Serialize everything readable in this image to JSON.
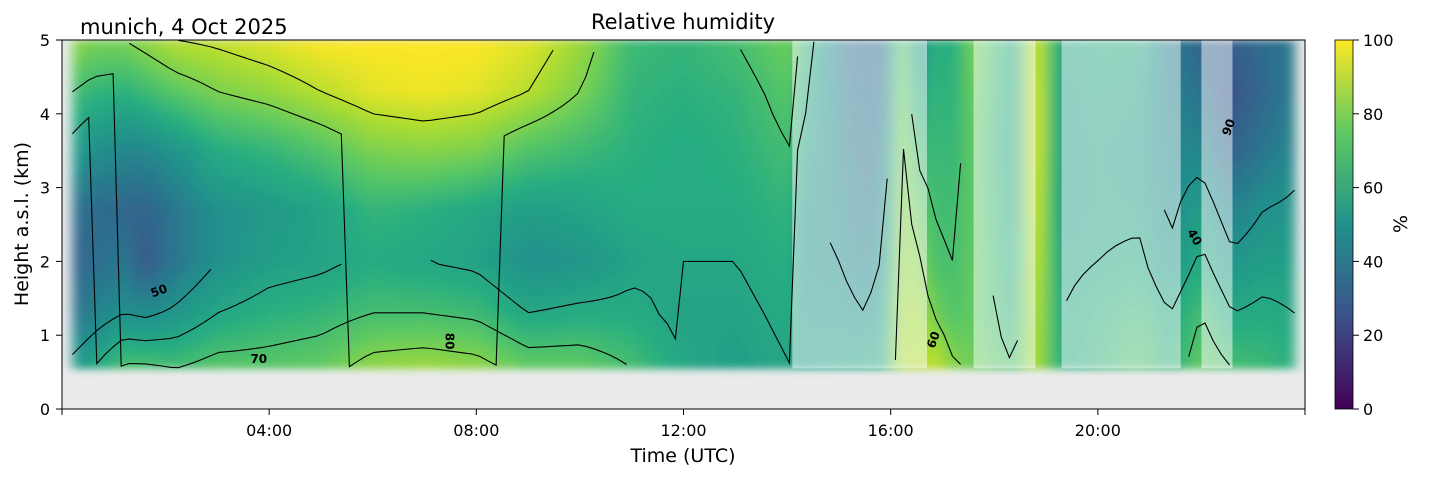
{
  "chart_data": {
    "type": "heatmap",
    "title": "Relative humidity",
    "subtitle": "munich, 4 Oct 2025",
    "xlabel": "Time (UTC)",
    "ylabel": "Height a.s.l. (km)",
    "x_unit": "hours UTC",
    "xlim": [
      0,
      24
    ],
    "ylim": [
      0,
      5
    ],
    "x_ticks": [
      4,
      8,
      12,
      16,
      20
    ],
    "x_tick_labels": [
      "04:00",
      "08:00",
      "12:00",
      "16:00",
      "20:00"
    ],
    "y_ticks": [
      0,
      1,
      2,
      3,
      4,
      5
    ],
    "y_tick_labels": [
      "0",
      "1",
      "2",
      "3",
      "4",
      "5"
    ],
    "data_bottom_km": 0.55,
    "data_start_h": 0.2,
    "data_end_h": 23.8,
    "colorbar": {
      "label": "%",
      "range": [
        0,
        100
      ],
      "ticks": [
        0,
        20,
        40,
        60,
        80,
        100
      ],
      "colors": [
        "#440154",
        "#3b528b",
        "#21918c",
        "#5ec962",
        "#fde725"
      ]
    },
    "contour_labels": [
      "50",
      "70",
      "80",
      "90",
      "40",
      "60"
    ],
    "quality_flagged_intervals": [
      [
        14.1,
        16.7
      ],
      [
        17.6,
        18.8
      ],
      [
        19.3,
        21.6
      ],
      [
        22.0,
        22.6
      ]
    ],
    "columns": [
      {
        "t": 0.2,
        "rh": [
          54,
          38,
          32,
          36,
          56,
          70,
          84
        ]
      },
      {
        "t": 0.6,
        "rh": [
          60,
          44,
          36,
          36,
          50,
          66,
          80
        ]
      },
      {
        "t": 1.2,
        "rh": [
          72,
          50,
          40,
          34,
          46,
          64,
          80
        ]
      },
      {
        "t": 1.6,
        "rh": [
          72,
          48,
          28,
          32,
          46,
          68,
          84
        ]
      },
      {
        "t": 2.2,
        "rh": [
          70,
          52,
          40,
          40,
          52,
          74,
          90
        ]
      },
      {
        "t": 3.0,
        "rh": [
          74,
          60,
          50,
          50,
          62,
          80,
          92
        ]
      },
      {
        "t": 4.0,
        "rh": [
          74,
          64,
          56,
          54,
          66,
          84,
          96
        ]
      },
      {
        "t": 5.0,
        "rh": [
          76,
          66,
          58,
          58,
          72,
          90,
          100
        ]
      },
      {
        "t": 6.0,
        "rh": [
          84,
          70,
          62,
          66,
          80,
          96,
          100
        ]
      },
      {
        "t": 7.0,
        "rh": [
          86,
          70,
          60,
          64,
          82,
          98,
          100
        ]
      },
      {
        "t": 8.0,
        "rh": [
          84,
          68,
          58,
          60,
          80,
          96,
          100
        ]
      },
      {
        "t": 9.0,
        "rh": [
          76,
          60,
          50,
          56,
          72,
          90,
          96
        ]
      },
      {
        "t": 10.0,
        "rh": [
          76,
          62,
          52,
          58,
          68,
          80,
          86
        ]
      },
      {
        "t": 11.0,
        "rh": [
          70,
          62,
          58,
          62,
          64,
          66,
          68
        ]
      },
      {
        "t": 12.0,
        "rh": [
          60,
          58,
          60,
          62,
          62,
          64,
          66
        ]
      },
      {
        "t": 13.0,
        "rh": [
          56,
          58,
          60,
          62,
          64,
          66,
          70
        ]
      },
      {
        "t": 14.1,
        "rh": [
          60,
          62,
          64,
          66,
          70,
          74,
          78
        ]
      },
      {
        "t": 14.2,
        "rh": [
          56,
          54,
          52,
          54,
          60,
          66,
          72
        ]
      },
      {
        "t": 15.0,
        "rh": [
          58,
          54,
          50,
          48,
          46,
          44,
          42
        ]
      },
      {
        "t": 15.5,
        "rh": [
          60,
          50,
          44,
          40,
          38,
          36,
          34
        ]
      },
      {
        "t": 15.9,
        "rh": [
          64,
          58,
          52,
          48,
          44,
          40,
          36
        ]
      },
      {
        "t": 16.2,
        "rh": [
          90,
          88,
          86,
          84,
          82,
          80,
          78
        ]
      },
      {
        "t": 16.6,
        "rh": [
          88,
          86,
          80,
          74,
          66,
          56,
          48
        ]
      },
      {
        "t": 16.8,
        "rh": [
          94,
          80,
          72,
          70,
          68,
          66,
          64
        ]
      },
      {
        "t": 17.2,
        "rh": [
          82,
          72,
          70,
          68,
          66,
          64,
          62
        ]
      },
      {
        "t": 17.6,
        "rh": [
          78,
          76,
          76,
          76,
          76,
          78,
          80
        ]
      },
      {
        "t": 18.4,
        "rh": [
          70,
          64,
          62,
          60,
          58,
          58,
          60
        ]
      },
      {
        "t": 18.8,
        "rh": [
          90,
          92,
          94,
          96,
          98,
          98,
          96
        ]
      },
      {
        "t": 19.3,
        "rh": [
          62,
          60,
          58,
          56,
          56,
          56,
          58
        ]
      },
      {
        "t": 20.0,
        "rh": [
          66,
          64,
          60,
          58,
          58,
          60,
          62
        ]
      },
      {
        "t": 20.8,
        "rh": [
          72,
          68,
          62,
          58,
          56,
          58,
          62
        ]
      },
      {
        "t": 21.4,
        "rh": [
          64,
          60,
          52,
          48,
          46,
          44,
          42
        ]
      },
      {
        "t": 22.0,
        "rh": [
          76,
          70,
          62,
          56,
          46,
          38,
          32
        ]
      },
      {
        "t": 22.6,
        "rh": [
          70,
          60,
          52,
          44,
          32,
          26,
          30
        ]
      },
      {
        "t": 23.2,
        "rh": [
          68,
          62,
          56,
          50,
          40,
          34,
          36
        ]
      },
      {
        "t": 23.8,
        "rh": [
          64,
          60,
          56,
          52,
          46,
          42,
          40
        ]
      }
    ],
    "column_levels_km": [
      0.55,
      1.3,
      2.0,
      2.7,
      3.5,
      4.3,
      5.0
    ]
  }
}
